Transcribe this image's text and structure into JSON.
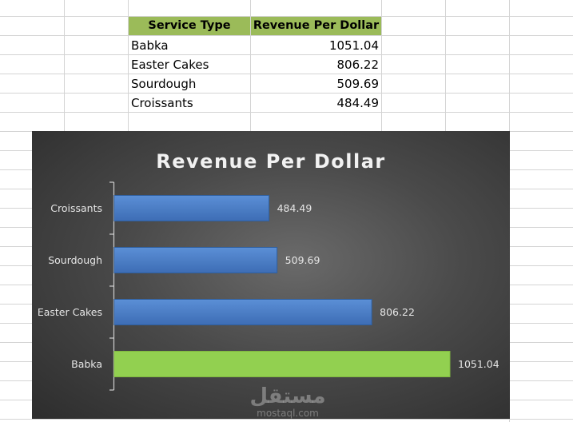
{
  "table": {
    "headers": [
      "Service Type",
      "Revenue Per Dollar"
    ],
    "rows": [
      {
        "service": "Babka",
        "value": "1051.04"
      },
      {
        "service": "Easter Cakes",
        "value": "806.22"
      },
      {
        "service": "Sourdough",
        "value": "509.69"
      },
      {
        "service": "Croissants",
        "value": "484.49"
      }
    ]
  },
  "colors": {
    "header_fill": "#9bbb59",
    "bar_blue": "#4a7ec8",
    "bar_green": "#92d050",
    "chart_bg": "#3c3c3c"
  },
  "chart_data": {
    "type": "bar",
    "orientation": "horizontal",
    "title": "Revenue Per Dollar",
    "categories": [
      "Croissants",
      "Sourdough",
      "Easter Cakes",
      "Babka"
    ],
    "values": [
      484.49,
      509.69,
      806.22,
      1051.04
    ],
    "data_labels": [
      "484.49",
      "509.69",
      "806.22",
      "1051.04"
    ],
    "highlight_category": "Babka",
    "xlim": [
      0,
      1100
    ],
    "grid": false,
    "legend": "none"
  },
  "watermark": {
    "arabic": "مستقل",
    "latin": "mostaql.com"
  }
}
